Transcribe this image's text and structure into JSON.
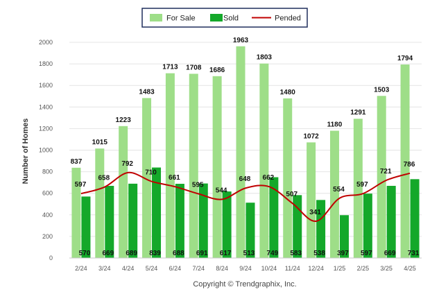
{
  "chart_data": {
    "type": "bar",
    "categories": [
      "2/24",
      "3/24",
      "4/24",
      "5/24",
      "6/24",
      "7/24",
      "8/24",
      "9/24",
      "10/24",
      "11/24",
      "12/24",
      "1/25",
      "2/25",
      "3/25",
      "4/25"
    ],
    "series": [
      {
        "name": "For Sale",
        "type": "bar",
        "color": "#9ede88",
        "values": [
          837,
          1015,
          1223,
          1483,
          1713,
          1708,
          1686,
          1963,
          1803,
          1480,
          1072,
          1180,
          1291,
          1503,
          1794
        ]
      },
      {
        "name": "Sold",
        "type": "bar",
        "color": "#14a82a",
        "values": [
          570,
          669,
          689,
          839,
          688,
          691,
          617,
          513,
          749,
          583,
          538,
          397,
          597,
          669,
          731
        ]
      },
      {
        "name": "Pended",
        "type": "line",
        "color": "#c00000",
        "values": [
          597,
          658,
          792,
          710,
          661,
          595,
          544,
          648,
          662,
          507,
          341,
          554,
          597,
          721,
          786
        ]
      }
    ],
    "ylabel": "Number of Homes",
    "yticks": [
      0,
      200,
      400,
      600,
      800,
      1000,
      1200,
      1400,
      1600,
      1800,
      2000
    ],
    "ylim": [
      0,
      2000
    ],
    "grid": true,
    "legend_position": "top-center"
  },
  "footer": {
    "credit": "Copyright © Trendgraphix, Inc."
  }
}
